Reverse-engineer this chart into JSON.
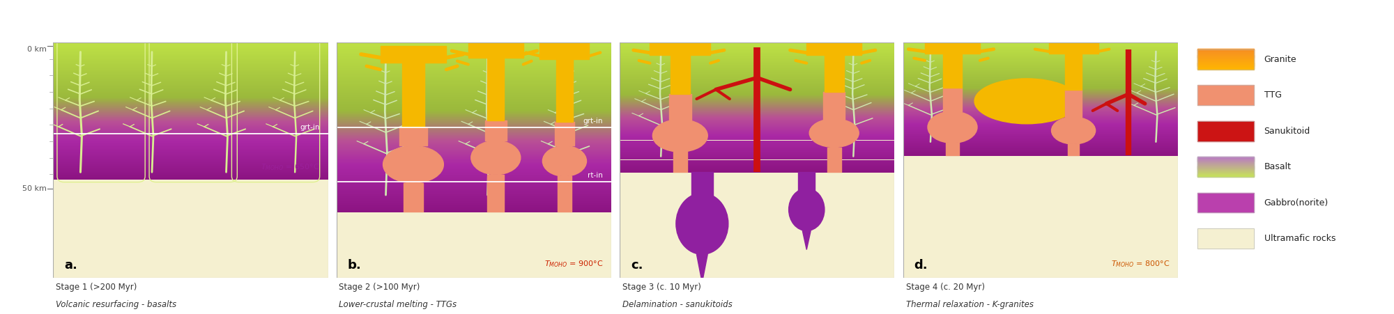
{
  "fig_width": 20.0,
  "fig_height": 4.51,
  "bg_color": "#ffffff",
  "ultramafic_color": "#f5f0d0",
  "basalt_top": "#c8e855",
  "basalt_mid": "#8abf40",
  "gabbro_top": "#c060c0",
  "gabbro_bot": "#8b1888",
  "ttg_color": "#f0907a",
  "granite_color": "#f5b800",
  "sanukitoid_color": "#cc1010",
  "tree_color": "#d8eea0",
  "white_line": "#ffffff",
  "label_color": "#333333",
  "tmoho_a_color": "#8b2090",
  "tmoho_b_color": "#cc2200",
  "tmoho_d_color": "#cc5500",
  "label_a": "a.",
  "label_b": "b.",
  "label_c": "c.",
  "label_d": "d.",
  "stage1_title": "Stage 1 (>200 Myr)",
  "stage1_sub": "Volcanic resurfacing - basalts",
  "stage2_title": "Stage 2 (>100 Myr)",
  "stage2_sub": "Lower-crustal melting - TTGs",
  "stage3_title": "Stage 3 (c. 10 Myr)",
  "stage3_sub": "Delamination - sanukitoids",
  "stage4_title": "Stage 4 (c. 20 Myr)",
  "stage4_sub": "Thermal relaxation - K-granites",
  "depth_0": "0 km",
  "depth_50": "50 km"
}
